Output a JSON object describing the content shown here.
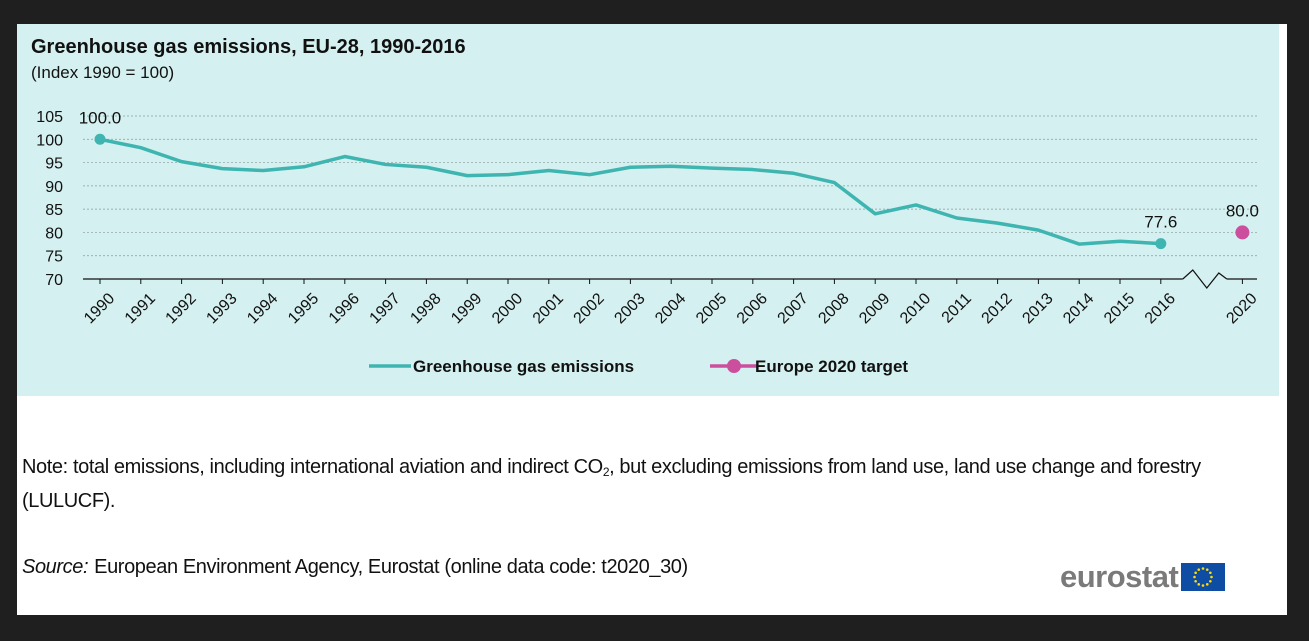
{
  "chart_data": {
    "type": "line",
    "title": "Greenhouse gas emissions, EU-28, 1990-2016",
    "subtitle": "(Index 1990 = 100)",
    "x": [
      "1990",
      "1991",
      "1992",
      "1993",
      "1994",
      "1995",
      "1996",
      "1997",
      "1998",
      "1999",
      "2000",
      "2001",
      "2002",
      "2003",
      "2004",
      "2005",
      "2006",
      "2007",
      "2008",
      "2009",
      "2010",
      "2011",
      "2012",
      "2013",
      "2014",
      "2015",
      "2016",
      "2020"
    ],
    "ylim": [
      70,
      105
    ],
    "yticks": [
      "70",
      "75",
      "80",
      "85",
      "90",
      "95",
      "100",
      "105"
    ],
    "grid": true,
    "axis_break": "between 2016 and 2020",
    "legend_position": "bottom",
    "series": [
      {
        "name": "Greenhouse gas emissions",
        "color": "#3eb5b0",
        "x": [
          "1990",
          "1991",
          "1992",
          "1993",
          "1994",
          "1995",
          "1996",
          "1997",
          "1998",
          "1999",
          "2000",
          "2001",
          "2002",
          "2003",
          "2004",
          "2005",
          "2006",
          "2007",
          "2008",
          "2009",
          "2010",
          "2011",
          "2012",
          "2013",
          "2014",
          "2015",
          "2016"
        ],
        "values": [
          100.0,
          98.2,
          95.2,
          93.7,
          93.3,
          94.1,
          96.3,
          94.6,
          94.0,
          92.2,
          92.4,
          93.3,
          92.4,
          94.0,
          94.2,
          93.8,
          93.5,
          92.7,
          90.7,
          84.0,
          85.9,
          83.1,
          82.0,
          80.5,
          77.5,
          78.1,
          77.6
        ],
        "data_labels": [
          {
            "x": "1990",
            "label": "100.0"
          },
          {
            "x": "2016",
            "label": "77.6"
          }
        ]
      },
      {
        "name": "Europe 2020 target",
        "color": "#cc4f9e",
        "x": [
          "2020"
        ],
        "values": [
          80.0
        ],
        "data_labels": [
          {
            "x": "2020",
            "label": "80.0"
          }
        ]
      }
    ]
  },
  "note": {
    "text_before": "Note: total emissions, including international aviation and indirect CO",
    "subscript": "2",
    "text_after": ", but excluding emissions from land use, land use change and forestry (LULUCF)."
  },
  "source": {
    "label": "Source:",
    "text": "European Environment Agency, Eurostat (online data code: t2020_30)"
  },
  "logo": {
    "text": "eurostat",
    "flag_color": "#0f4ca3",
    "star_color": "#ffdd00"
  }
}
